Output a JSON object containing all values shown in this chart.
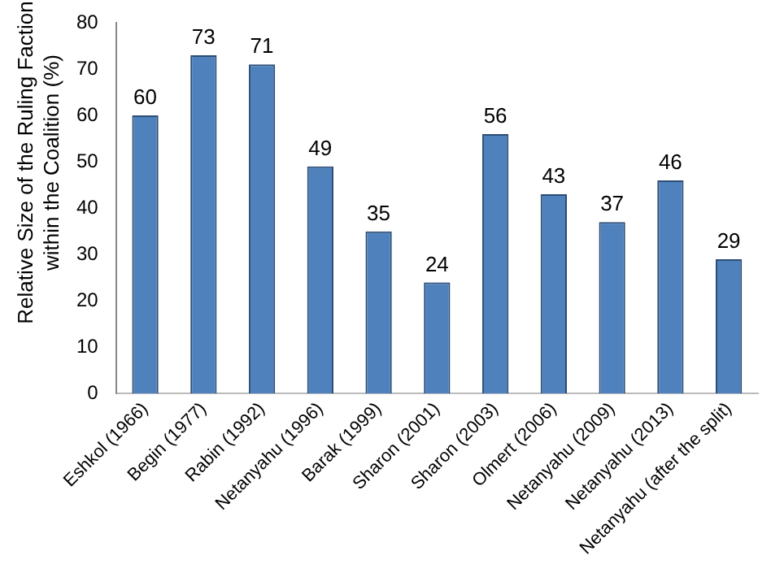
{
  "chart_data": {
    "type": "bar",
    "ylabel": "Relative Size of the Ruling Faction within the Coalition (%)",
    "categories": [
      "Eshkol (1966)",
      "Begin (1977)",
      "Rabin (1992)",
      "Netanyahu (1996)",
      "Barak (1999)",
      "Sharon (2001)",
      "Sharon (2003)",
      "Olmert (2006)",
      "Netanyahu (2009)",
      "Netanyahu (2013)",
      "Netanyahu (after the split)"
    ],
    "values": [
      60,
      73,
      71,
      49,
      35,
      24,
      56,
      43,
      37,
      46,
      29
    ],
    "color": "#4f81bd",
    "ylim": [
      0,
      80
    ],
    "yticks": [
      0,
      10,
      20,
      30,
      40,
      50,
      60,
      70,
      80
    ],
    "grid": false,
    "legend": false,
    "data_labels": true
  }
}
